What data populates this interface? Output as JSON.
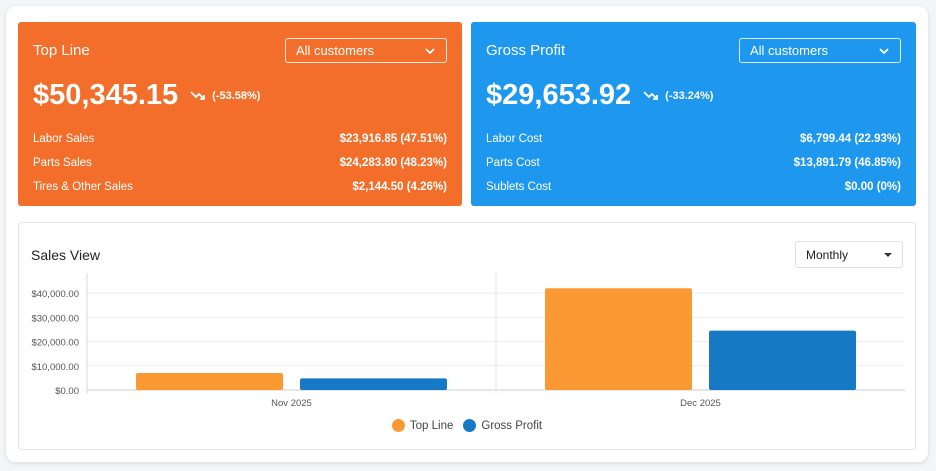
{
  "top_line": {
    "title": "Top Line",
    "filter": "All customers",
    "value": "$50,345.15",
    "change": "(-53.58%)",
    "rows": [
      {
        "label": "Labor Sales",
        "value": "$23,916.85 (47.51%)"
      },
      {
        "label": "Parts Sales",
        "value": "$24,283.80 (48.23%)"
      },
      {
        "label": "Tires & Other Sales",
        "value": "$2,144.50 (4.26%)"
      }
    ],
    "color": "#f26e2a"
  },
  "gross_profit": {
    "title": "Gross Profit",
    "filter": "All customers",
    "value": "$29,653.92",
    "change": "(-33.24%)",
    "rows": [
      {
        "label": "Labor Cost",
        "value": "$6,799.44 (22.93%)"
      },
      {
        "label": "Parts Cost",
        "value": "$13,891.79 (46.85%)"
      },
      {
        "label": "Sublets Cost",
        "value": "$0.00 (0%)"
      }
    ],
    "color": "#1e98ee"
  },
  "sales_view": {
    "title": "Sales View",
    "period": "Monthly"
  },
  "chart_data": {
    "type": "bar",
    "categories": [
      "Nov 2025",
      "Dec 2025"
    ],
    "series": [
      {
        "name": "Top Line",
        "values": [
          7000,
          42000
        ],
        "color": "#fb9a33"
      },
      {
        "name": "Gross Profit",
        "values": [
          4800,
          24500
        ],
        "color": "#1679c5"
      }
    ],
    "yticks": [
      "$0.00",
      "$10,000.00",
      "$20,000.00",
      "$30,000.00",
      "$40,000.00"
    ],
    "ylim": [
      0,
      45000
    ],
    "grid": true,
    "legend": "bottom-center"
  }
}
